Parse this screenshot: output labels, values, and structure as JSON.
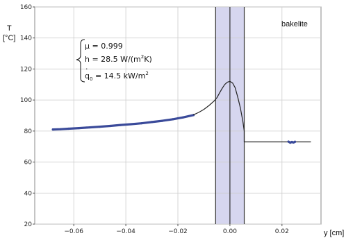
{
  "chart_data": {
    "type": "line",
    "xlabel": "y [cm]",
    "ylabel_line1": "T",
    "ylabel_line2": "[°C]",
    "inset_label": "bakelite",
    "xlim": [
      -0.075,
      0.035
    ],
    "ylim": [
      20,
      160
    ],
    "x_ticks": [
      -0.06,
      -0.04,
      -0.02,
      0.0,
      0.02
    ],
    "x_tick_labels": [
      "−0.06",
      "−0.04",
      "−0.02",
      "0.00",
      "0.02"
    ],
    "y_ticks": [
      20,
      40,
      60,
      80,
      100,
      120,
      140,
      160
    ],
    "y_tick_labels": [
      "20",
      "40",
      "60",
      "80",
      "100",
      "120",
      "140",
      "160"
    ],
    "grid": true,
    "shaded_band": {
      "x_from": -0.0055,
      "x_to": 0.0055,
      "color": "#d6d6ef"
    },
    "vertical_lines": [
      -0.0055,
      0.0,
      0.0055
    ],
    "annotations": {
      "mu_prefix": "μ",
      "mu_value": " = 0.999",
      "h_text": "h = 28.5 W/(m",
      "h_sup": "2",
      "h_end": "K)",
      "q_symbol": "q",
      "q_sub": "0",
      "q_value": " = 14.5 kW/m",
      "q_sup": "2"
    },
    "series": [
      {
        "kind": "measured",
        "color": "#3a4a9a",
        "x": [
          -0.068,
          -0.065,
          -0.062,
          -0.058,
          -0.055,
          -0.05,
          -0.046,
          -0.042,
          -0.038,
          -0.034,
          -0.03,
          -0.026,
          -0.022,
          -0.018,
          -0.014
        ],
        "y": [
          81.0,
          81.2,
          81.5,
          81.9,
          82.2,
          82.8,
          83.3,
          83.9,
          84.4,
          85.0,
          85.8,
          86.6,
          87.6,
          88.8,
          90.3
        ]
      },
      {
        "kind": "model",
        "color": "#222222",
        "x": [
          -0.014,
          -0.012,
          -0.01,
          -0.008,
          -0.006,
          -0.005,
          -0.004,
          -0.003,
          -0.002,
          -0.001,
          0.0,
          0.001,
          0.002,
          0.003,
          0.004,
          0.005,
          0.0055,
          0.0055,
          0.031
        ],
        "y": [
          90.5,
          92.0,
          94.0,
          96.5,
          99.5,
          101.5,
          104.5,
          107.5,
          110.0,
          111.5,
          112.0,
          111.0,
          108.0,
          102.0,
          95.0,
          86.0,
          80.0,
          73.0,
          73.0
        ]
      },
      {
        "kind": "measured-right",
        "color": "#3a4a9a",
        "x": [
          0.0225,
          0.0232,
          0.0238,
          0.0244,
          0.025
        ],
        "y": [
          73.2,
          72.5,
          73.0,
          72.6,
          73.1
        ]
      }
    ]
  }
}
